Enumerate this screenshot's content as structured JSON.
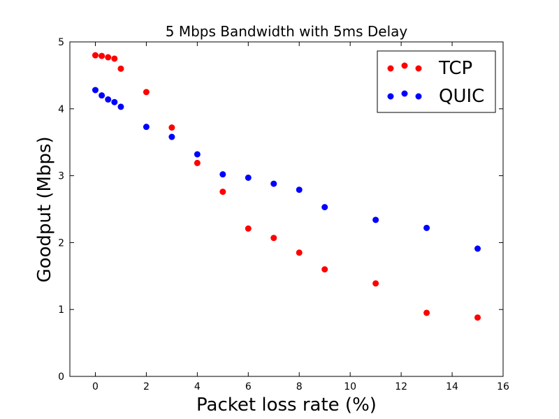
{
  "chart_data": {
    "type": "scatter",
    "title": "5 Mbps Bandwidth with 5ms Delay",
    "xlabel": "Packet loss rate (%)",
    "ylabel": "Goodput (Mbps)",
    "xlim": [
      -1,
      16
    ],
    "ylim": [
      0,
      5
    ],
    "xticks": [
      "0",
      "2",
      "4",
      "6",
      "8",
      "10",
      "12",
      "14",
      "16"
    ],
    "yticks": [
      "0",
      "1",
      "2",
      "3",
      "4",
      "5"
    ],
    "grid": false,
    "legend_position": "top-right",
    "series": [
      {
        "name": "TCP",
        "color": "#ff0000",
        "points": [
          [
            0,
            4.8
          ],
          [
            0.25,
            4.79
          ],
          [
            0.5,
            4.77
          ],
          [
            0.75,
            4.75
          ],
          [
            1,
            4.6
          ],
          [
            2,
            4.25
          ],
          [
            3,
            3.72
          ],
          [
            4,
            3.19
          ],
          [
            5,
            2.76
          ],
          [
            6,
            2.21
          ],
          [
            7,
            2.07
          ],
          [
            8,
            1.85
          ],
          [
            9,
            1.6
          ],
          [
            11,
            1.39
          ],
          [
            13,
            0.95
          ],
          [
            15,
            0.88
          ]
        ]
      },
      {
        "name": "QUIC",
        "color": "#0000ff",
        "points": [
          [
            0,
            4.28
          ],
          [
            0.25,
            4.2
          ],
          [
            0.5,
            4.14
          ],
          [
            0.75,
            4.1
          ],
          [
            1,
            4.03
          ],
          [
            2,
            3.73
          ],
          [
            3,
            3.58
          ],
          [
            4,
            3.32
          ],
          [
            5,
            3.02
          ],
          [
            6,
            2.97
          ],
          [
            7,
            2.88
          ],
          [
            8,
            2.79
          ],
          [
            9,
            2.53
          ],
          [
            11,
            2.34
          ],
          [
            13,
            2.22
          ],
          [
            15,
            1.91
          ]
        ]
      }
    ]
  }
}
